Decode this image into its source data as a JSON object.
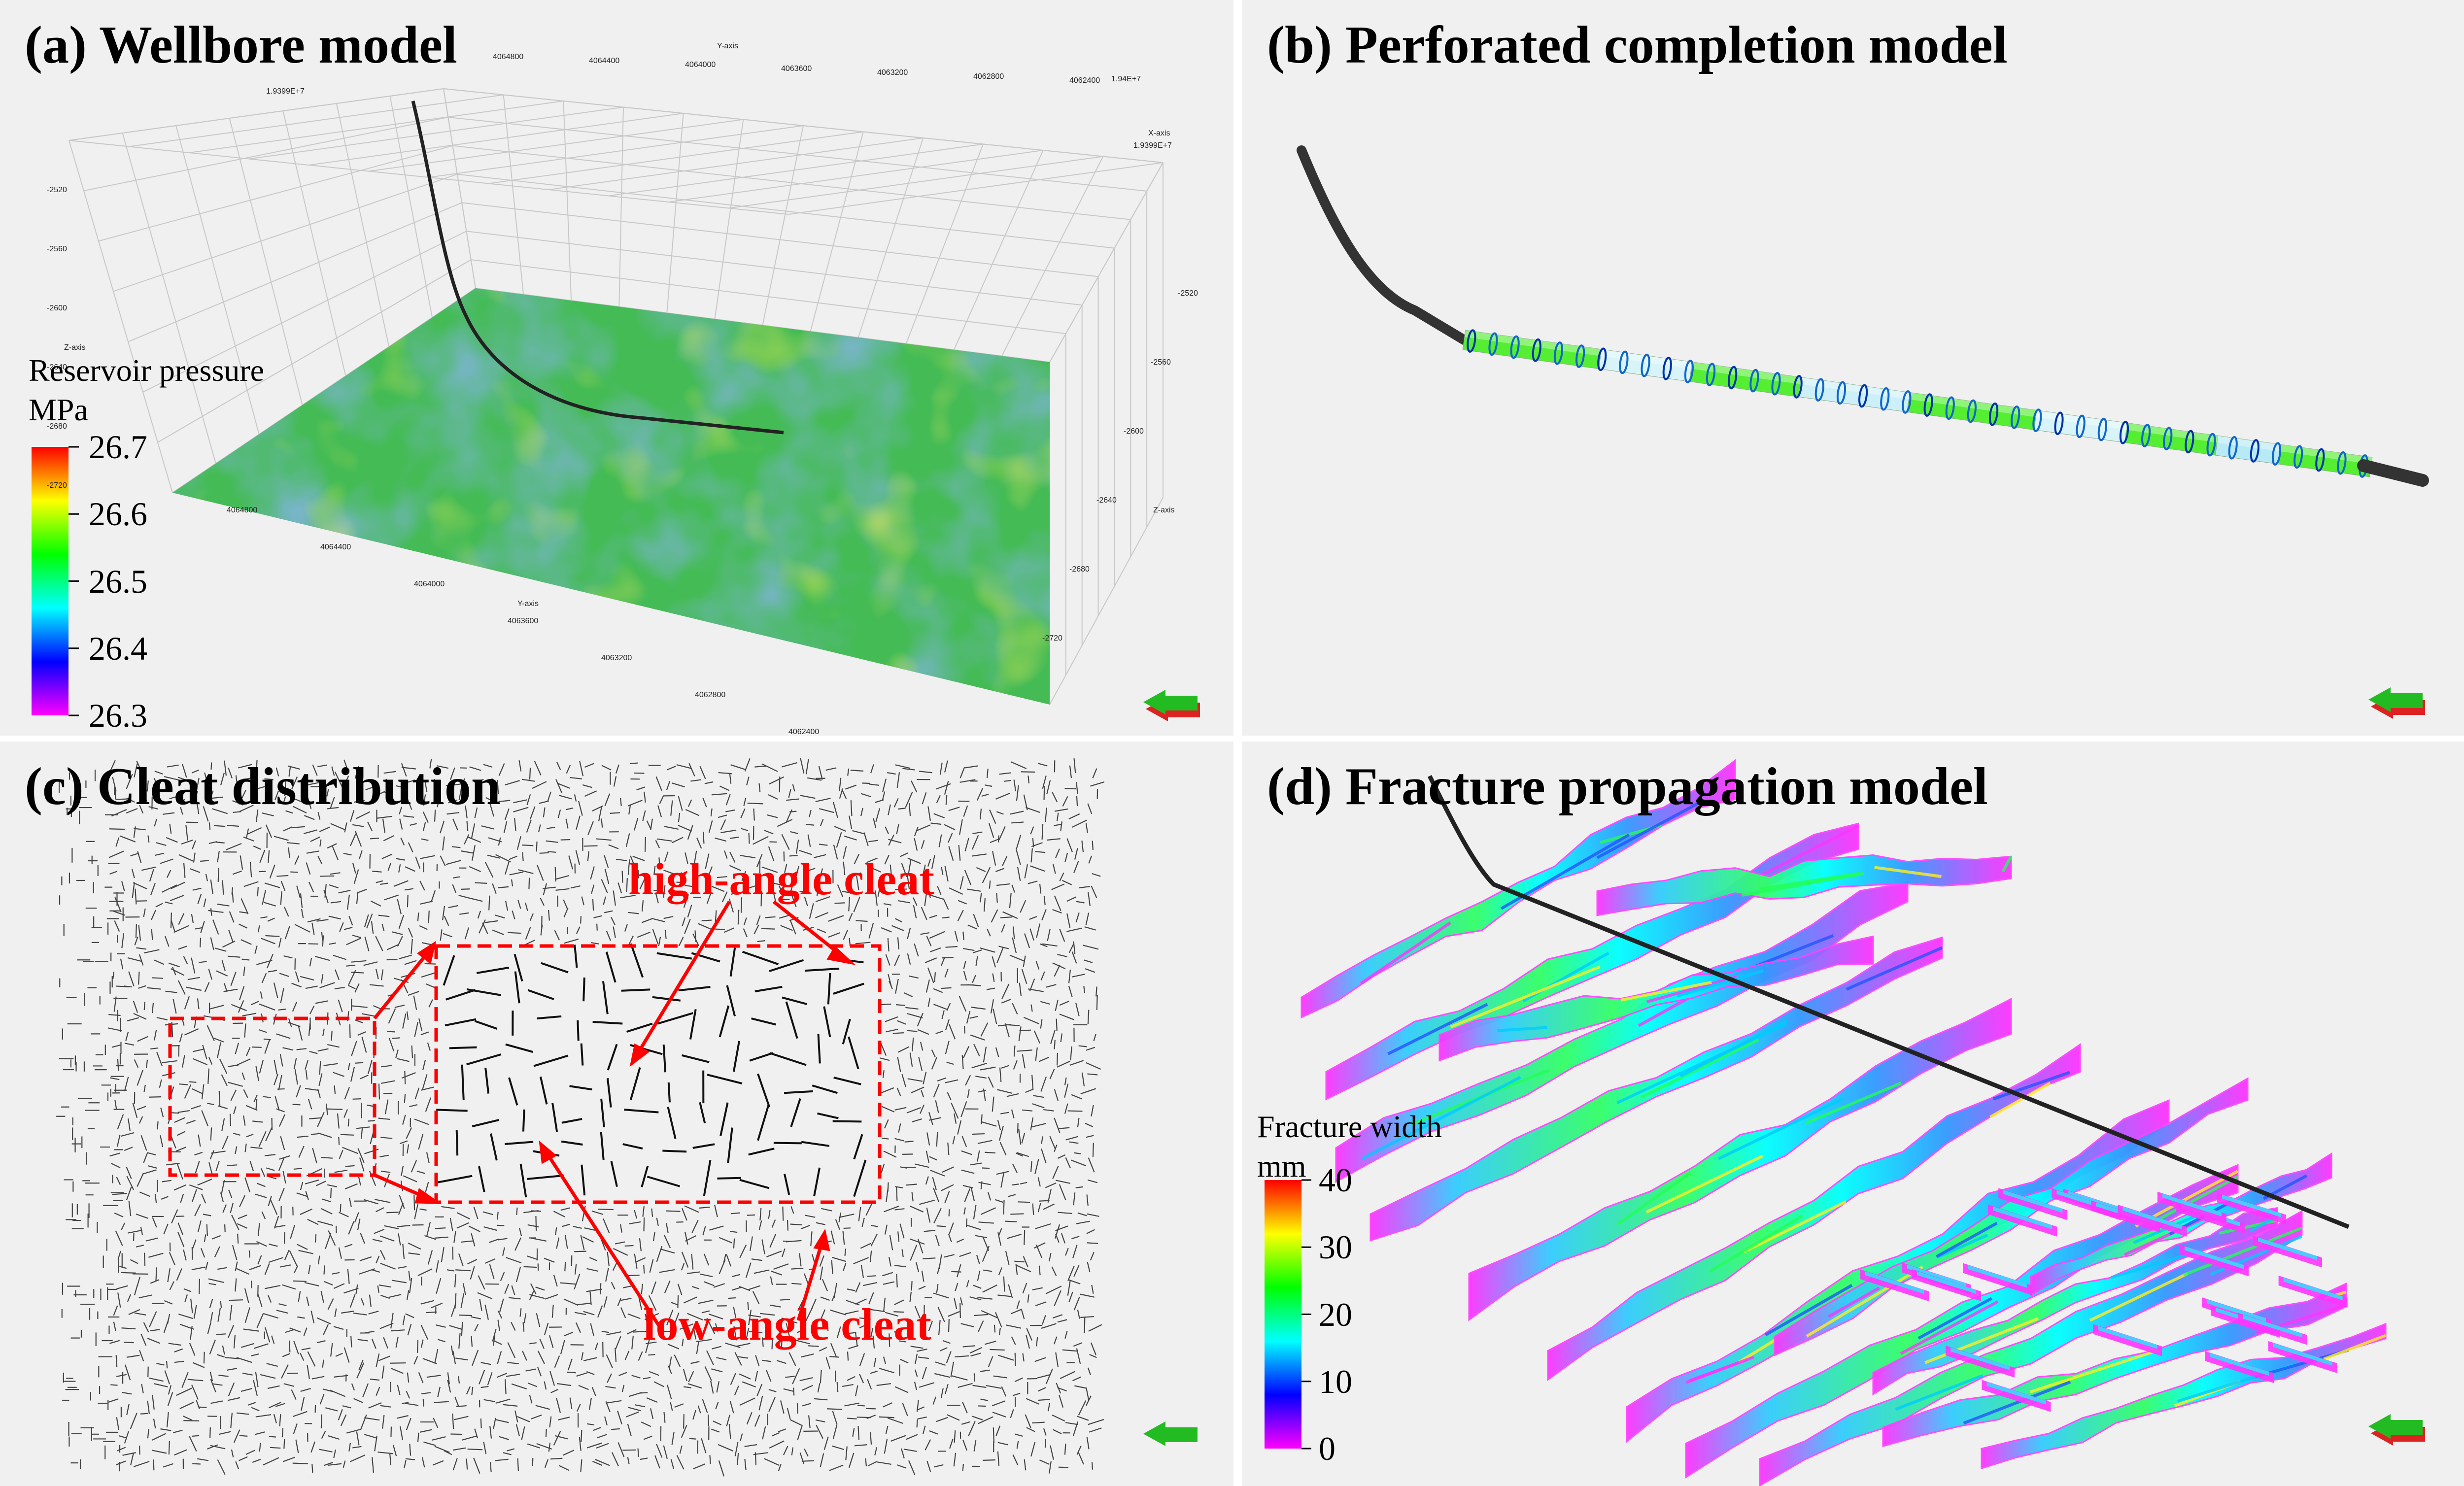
{
  "panel_a": {
    "title": "(a) Wellbore model",
    "legend_title": "Reservoir pressure",
    "legend_unit": "MPa",
    "colorbar_ticks": [
      "26.7",
      "26.6",
      "26.5",
      "26.4",
      "26.3"
    ],
    "y_axis_top_label": "Y-axis",
    "y_axis_top_ticks": [
      "4064800",
      "4064400",
      "4064000",
      "4063600",
      "4063200",
      "4062800",
      "4062400"
    ],
    "y_axis_bottom_label": "Y-axis",
    "y_axis_bottom_ticks": [
      "4064800",
      "4064400",
      "4064000",
      "4063600",
      "4063200",
      "4062800",
      "4062400"
    ],
    "x_axis_label": "X-axis",
    "x_axis_ticks": [
      "1.9399E+7",
      "1.94E+7",
      "1.9399E+7"
    ],
    "z_axis_label": "Z-axis",
    "z_axis_left_ticks": [
      "-2520",
      "-2560",
      "-2600",
      "-2640",
      "-2680",
      "-2720"
    ],
    "z_axis_right_ticks": [
      "-2520",
      "-2560",
      "-2600",
      "-2640",
      "-2680",
      "-2720"
    ]
  },
  "panel_b": {
    "title": "(b) Perforated completion model"
  },
  "panel_c": {
    "title": "(c) Cleat distribution",
    "label_high": "high-angle cleat",
    "label_low": "low-angle cleat"
  },
  "panel_d": {
    "title": "(d) Fracture propagation model",
    "legend_title": "Fracture width",
    "legend_unit": "mm",
    "colorbar_ticks": [
      "40",
      "30",
      "20",
      "10",
      "0"
    ]
  },
  "colors": {
    "panel_bg": "#f0f0f0",
    "annotation_red": "#ff0000",
    "wellbore": "#222222",
    "orientation_arrow": "#22bb22",
    "colormap": [
      "#ff00ff",
      "#0000ff",
      "#00ffff",
      "#00ff00",
      "#ffff00",
      "#ff0000"
    ]
  }
}
